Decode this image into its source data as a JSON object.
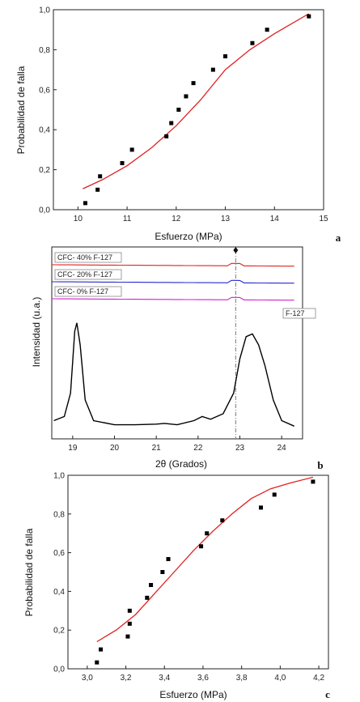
{
  "chart_data": [
    {
      "type": "scatter",
      "panel_letter": "a",
      "xlabel": "Esfuerzo (MPa)",
      "ylabel": "Probabilidad de falla",
      "xlim": [
        9.5,
        15
      ],
      "ylim": [
        0,
        1
      ],
      "xticks": [
        "10",
        "11",
        "12",
        "13",
        "14",
        "15"
      ],
      "yticks": [
        "0,0",
        "0,2",
        "0,4",
        "0,6",
        "0,8",
        "1,0"
      ],
      "points": [
        {
          "x": 10.15,
          "y": 0.033
        },
        {
          "x": 10.4,
          "y": 0.1
        },
        {
          "x": 10.45,
          "y": 0.167
        },
        {
          "x": 10.9,
          "y": 0.233
        },
        {
          "x": 11.1,
          "y": 0.3
        },
        {
          "x": 11.8,
          "y": 0.367
        },
        {
          "x": 11.9,
          "y": 0.433
        },
        {
          "x": 12.05,
          "y": 0.5
        },
        {
          "x": 12.2,
          "y": 0.567
        },
        {
          "x": 12.35,
          "y": 0.633
        },
        {
          "x": 12.75,
          "y": 0.7
        },
        {
          "x": 13.0,
          "y": 0.767
        },
        {
          "x": 13.55,
          "y": 0.833
        },
        {
          "x": 13.85,
          "y": 0.9
        },
        {
          "x": 14.7,
          "y": 0.967
        }
      ],
      "fit": [
        [
          10.1,
          0.105
        ],
        [
          10.5,
          0.15
        ],
        [
          11.0,
          0.22
        ],
        [
          11.5,
          0.31
        ],
        [
          12.0,
          0.42
        ],
        [
          12.5,
          0.55
        ],
        [
          13.0,
          0.7
        ],
        [
          13.5,
          0.8
        ],
        [
          14.0,
          0.88
        ],
        [
          14.7,
          0.98
        ]
      ],
      "fit_color": "#e02020"
    },
    {
      "type": "line",
      "panel_letter": "b",
      "xlabel": "2θ (Grados)",
      "ylabel": "Intensidad (u.a.)",
      "xlim": [
        18.5,
        24.5
      ],
      "xticks": [
        "19",
        "20",
        "21",
        "22",
        "23",
        "24"
      ],
      "marker_position": 22.9,
      "series": [
        {
          "name": "CFC- 40% F-127",
          "color": "#e02020",
          "level": 1.0
        },
        {
          "name": "CFC- 20% F-127",
          "color": "#2828d0",
          "level": 0.88
        },
        {
          "name": "CFC- 0% F-127",
          "color": "#d020d0",
          "level": 0.76
        },
        {
          "name": "F-127",
          "color": "#000000",
          "points": [
            [
              18.55,
              0.05
            ],
            [
              18.8,
              0.08
            ],
            [
              18.95,
              0.25
            ],
            [
              19.05,
              0.7
            ],
            [
              19.1,
              0.76
            ],
            [
              19.18,
              0.6
            ],
            [
              19.3,
              0.2
            ],
            [
              19.5,
              0.05
            ],
            [
              20.0,
              0.02
            ],
            [
              20.5,
              0.02
            ],
            [
              21.0,
              0.025
            ],
            [
              21.2,
              0.03
            ],
            [
              21.5,
              0.02
            ],
            [
              21.9,
              0.05
            ],
            [
              22.1,
              0.08
            ],
            [
              22.3,
              0.06
            ],
            [
              22.6,
              0.1
            ],
            [
              22.85,
              0.25
            ],
            [
              23.0,
              0.5
            ],
            [
              23.15,
              0.66
            ],
            [
              23.3,
              0.68
            ],
            [
              23.45,
              0.6
            ],
            [
              23.6,
              0.45
            ],
            [
              23.8,
              0.2
            ],
            [
              24.0,
              0.05
            ],
            [
              24.3,
              0.01
            ]
          ]
        }
      ]
    },
    {
      "type": "scatter",
      "panel_letter": "c",
      "xlabel": "Esfuerzo (MPa)",
      "ylabel": "Probabilidad de falla",
      "xlim": [
        2.9,
        4.25
      ],
      "ylim": [
        0,
        1
      ],
      "xticks": [
        "3,0",
        "3,2",
        "3,4",
        "3,6",
        "3,8",
        "4,0",
        "4,2"
      ],
      "yticks": [
        "0,0",
        "0,2",
        "0,4",
        "0,6",
        "0,8",
        "1,0"
      ],
      "points": [
        {
          "x": 3.05,
          "y": 0.033
        },
        {
          "x": 3.07,
          "y": 0.1
        },
        {
          "x": 3.21,
          "y": 0.167
        },
        {
          "x": 3.22,
          "y": 0.233
        },
        {
          "x": 3.22,
          "y": 0.3
        },
        {
          "x": 3.31,
          "y": 0.367
        },
        {
          "x": 3.33,
          "y": 0.433
        },
        {
          "x": 3.39,
          "y": 0.5
        },
        {
          "x": 3.42,
          "y": 0.567
        },
        {
          "x": 3.59,
          "y": 0.633
        },
        {
          "x": 3.62,
          "y": 0.7
        },
        {
          "x": 3.7,
          "y": 0.767
        },
        {
          "x": 3.9,
          "y": 0.833
        },
        {
          "x": 3.97,
          "y": 0.9
        },
        {
          "x": 4.17,
          "y": 0.967
        }
      ],
      "fit": [
        [
          3.05,
          0.14
        ],
        [
          3.15,
          0.2
        ],
        [
          3.25,
          0.28
        ],
        [
          3.35,
          0.39
        ],
        [
          3.45,
          0.5
        ],
        [
          3.55,
          0.61
        ],
        [
          3.65,
          0.71
        ],
        [
          3.75,
          0.8
        ],
        [
          3.85,
          0.88
        ],
        [
          3.95,
          0.93
        ],
        [
          4.05,
          0.96
        ],
        [
          4.17,
          0.99
        ]
      ],
      "fit_color": "#e02020"
    }
  ]
}
